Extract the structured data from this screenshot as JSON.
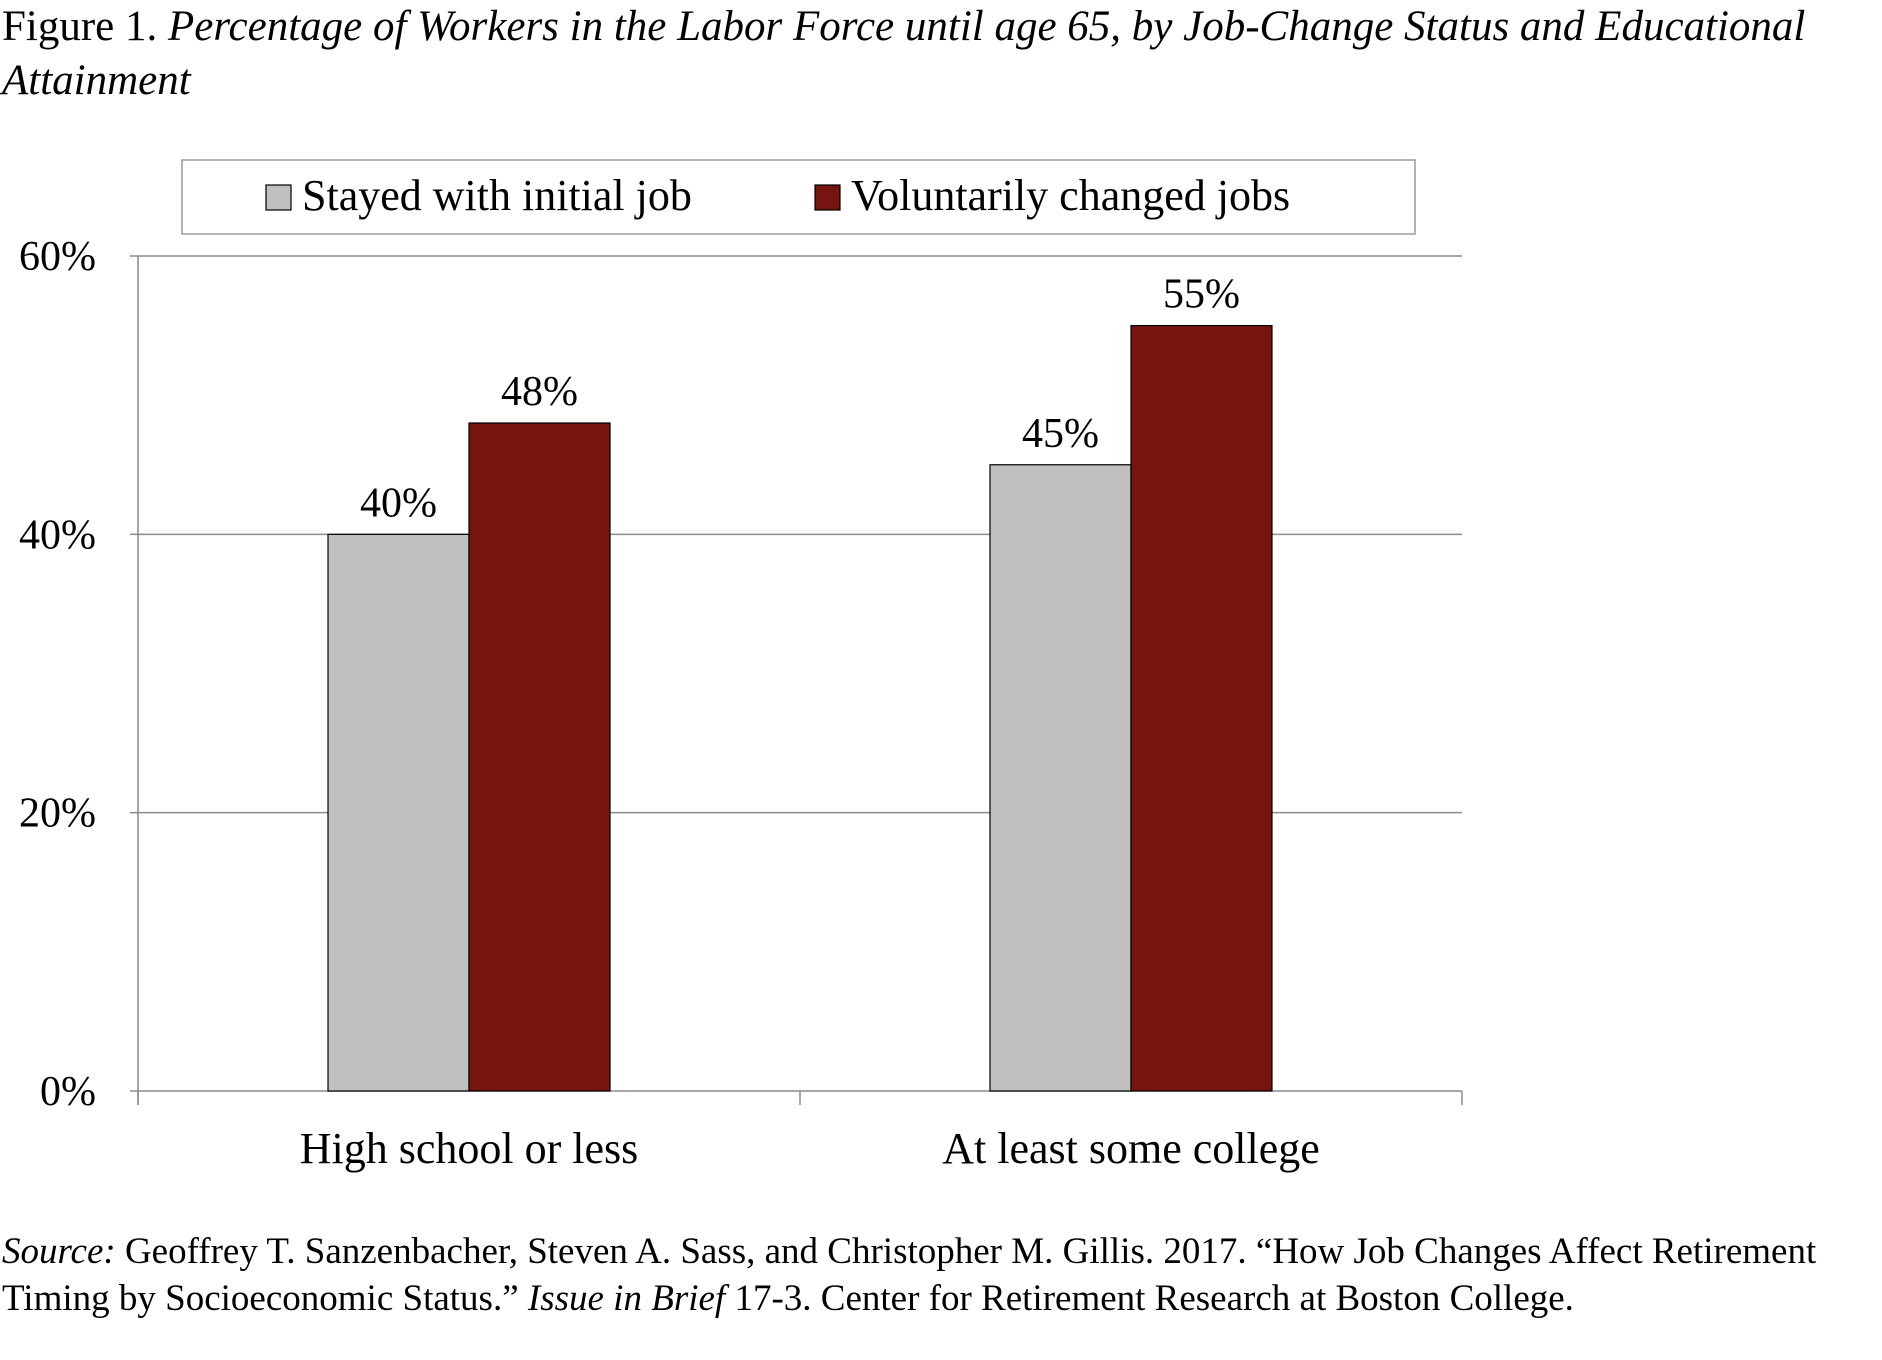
{
  "figure": {
    "label": "Figure 1.",
    "title": "Percentage of Workers in the Labor Force until age 65, by Job-Change Status and Educational Attainment"
  },
  "chart_data": {
    "type": "bar",
    "title": "",
    "xlabel": "",
    "ylabel": "",
    "categories": [
      "High school or less",
      "At least some college"
    ],
    "series": [
      {
        "name": "Stayed with initial job",
        "color": "#c0c0c0",
        "values": [
          40,
          45
        ],
        "labels": [
          "40%",
          "45%"
        ]
      },
      {
        "name": "Voluntarily changed jobs",
        "color": "#761510",
        "values": [
          48,
          55
        ],
        "labels": [
          "48%",
          "55%"
        ]
      }
    ],
    "ylim": [
      0,
      60
    ],
    "yticks": [
      0,
      20,
      40,
      60
    ],
    "ytick_labels": [
      "0%",
      "20%",
      "40%",
      "60%"
    ],
    "grid": true,
    "legend_position": "top"
  },
  "source": {
    "label": "Source:",
    "text_part1": "Geoffrey T. Sanzenbacher, Steven A. Sass, and Christopher M. Gillis. 2017. “How Job Changes Affect Retirement Timing by Socioeconomic Status.”",
    "publication": "Issue in Brief",
    "text_part2": "17-3. Center for Retirement Research at Boston College."
  }
}
